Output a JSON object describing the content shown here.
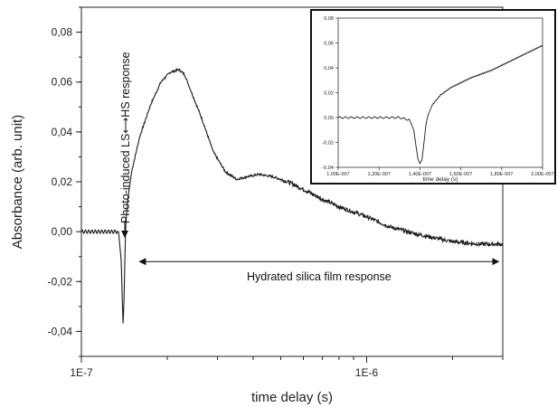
{
  "chart_data": [
    {
      "type": "line",
      "title": "",
      "xlabel": "time delay (s)",
      "ylabel": "Absorbance (arb. unit)",
      "x_scale": "log",
      "xlim": [
        1e-07,
        3e-06
      ],
      "ylim": [
        -0.05,
        0.09
      ],
      "x_ticks": [
        {
          "value": 1e-07,
          "label": "1E-7"
        },
        {
          "value": 1e-06,
          "label": "1E-6"
        }
      ],
      "y_ticks": [
        {
          "value": -0.04,
          "label": "-0,04"
        },
        {
          "value": -0.02,
          "label": "-0,02"
        },
        {
          "value": 0.0,
          "label": "0,00"
        },
        {
          "value": 0.02,
          "label": "0,02"
        },
        {
          "value": 0.04,
          "label": "0,04"
        },
        {
          "value": 0.06,
          "label": "0,06"
        },
        {
          "value": 0.08,
          "label": "0,08"
        }
      ],
      "grid": false,
      "series": [
        {
          "x": [
            1e-07,
            1.1e-07,
            1.2e-07,
            1.3e-07,
            1.35e-07,
            1.38e-07,
            1.39e-07,
            1.4e-07,
            1.41e-07,
            1.42e-07,
            1.43e-07,
            1.45e-07,
            1.5e-07,
            1.6e-07,
            1.75e-07,
            1.9e-07,
            2.05e-07,
            2.2e-07,
            2.3e-07,
            2.45e-07,
            2.65e-07,
            2.9e-07,
            3.2e-07,
            3.5e-07,
            3.8e-07,
            4.2e-07,
            4.7e-07,
            5.3e-07,
            6e-07,
            7e-07,
            8e-07,
            1e-06,
            1.2e-06,
            1.5e-06,
            2e-06,
            2.5e-06,
            3e-06
          ],
          "y": [
            0.0,
            0.0,
            0.0,
            0.0,
            0.0,
            -0.012,
            -0.026,
            -0.037,
            -0.028,
            -0.012,
            0.002,
            0.012,
            0.024,
            0.038,
            0.051,
            0.06,
            0.064,
            0.065,
            0.063,
            0.055,
            0.045,
            0.032,
            0.024,
            0.021,
            0.022,
            0.023,
            0.022,
            0.02,
            0.017,
            0.013,
            0.01,
            0.006,
            0.002,
            -0.001,
            -0.004,
            -0.005,
            -0.005
          ]
        }
      ],
      "annotations": [
        {
          "text": "Photo-induced LS⟷HS response",
          "at": {
            "x": 1.38e-07,
            "y": 0.0
          }
        },
        {
          "text": "Hydrated silica film response",
          "span": [
            1.6e-07,
            2.9e-06
          ],
          "y": -0.012
        }
      ]
    },
    {
      "type": "line",
      "title": "",
      "xlabel": "time delay (s)",
      "ylabel": "",
      "xlim": [
        1e-07,
        2e-07
      ],
      "ylim": [
        -0.04,
        0.08
      ],
      "x_ticks": [
        {
          "value": 1e-07,
          "label": "1,00E-007"
        },
        {
          "value": 1.2e-07,
          "label": "1,20E-007"
        },
        {
          "value": 1.4e-07,
          "label": "1,40E-007"
        },
        {
          "value": 1.6e-07,
          "label": "1,60E-007"
        },
        {
          "value": 1.8e-07,
          "label": "1,80E-007"
        },
        {
          "value": 2e-07,
          "label": "2,00E-007"
        }
      ],
      "y_ticks": [
        {
          "value": -0.04,
          "label": "-0,04"
        },
        {
          "value": -0.02,
          "label": "-0,02"
        },
        {
          "value": 0.0,
          "label": "0,00"
        },
        {
          "value": 0.02,
          "label": "0,02"
        },
        {
          "value": 0.04,
          "label": "0,04"
        },
        {
          "value": 0.06,
          "label": "0,06"
        },
        {
          "value": 0.08,
          "label": "0,08"
        }
      ],
      "grid": false,
      "series": [
        {
          "x": [
            1e-07,
            1.2e-07,
            1.3e-07,
            1.35e-07,
            1.37e-07,
            1.38e-07,
            1.39e-07,
            1.4e-07,
            1.41e-07,
            1.42e-07,
            1.43e-07,
            1.44e-07,
            1.45e-07,
            1.46e-07,
            1.48e-07,
            1.5e-07,
            1.55e-07,
            1.6e-07,
            1.65e-07,
            1.7e-07,
            1.75e-07,
            1.8e-07,
            1.85e-07,
            1.9e-07,
            1.95e-07,
            2e-07
          ],
          "y": [
            0.0,
            0.0,
            0.0,
            -0.002,
            -0.01,
            -0.022,
            -0.033,
            -0.037,
            -0.034,
            -0.02,
            -0.005,
            0.002,
            0.006,
            0.01,
            0.014,
            0.018,
            0.024,
            0.028,
            0.032,
            0.035,
            0.038,
            0.042,
            0.046,
            0.05,
            0.054,
            0.058
          ]
        }
      ]
    }
  ]
}
